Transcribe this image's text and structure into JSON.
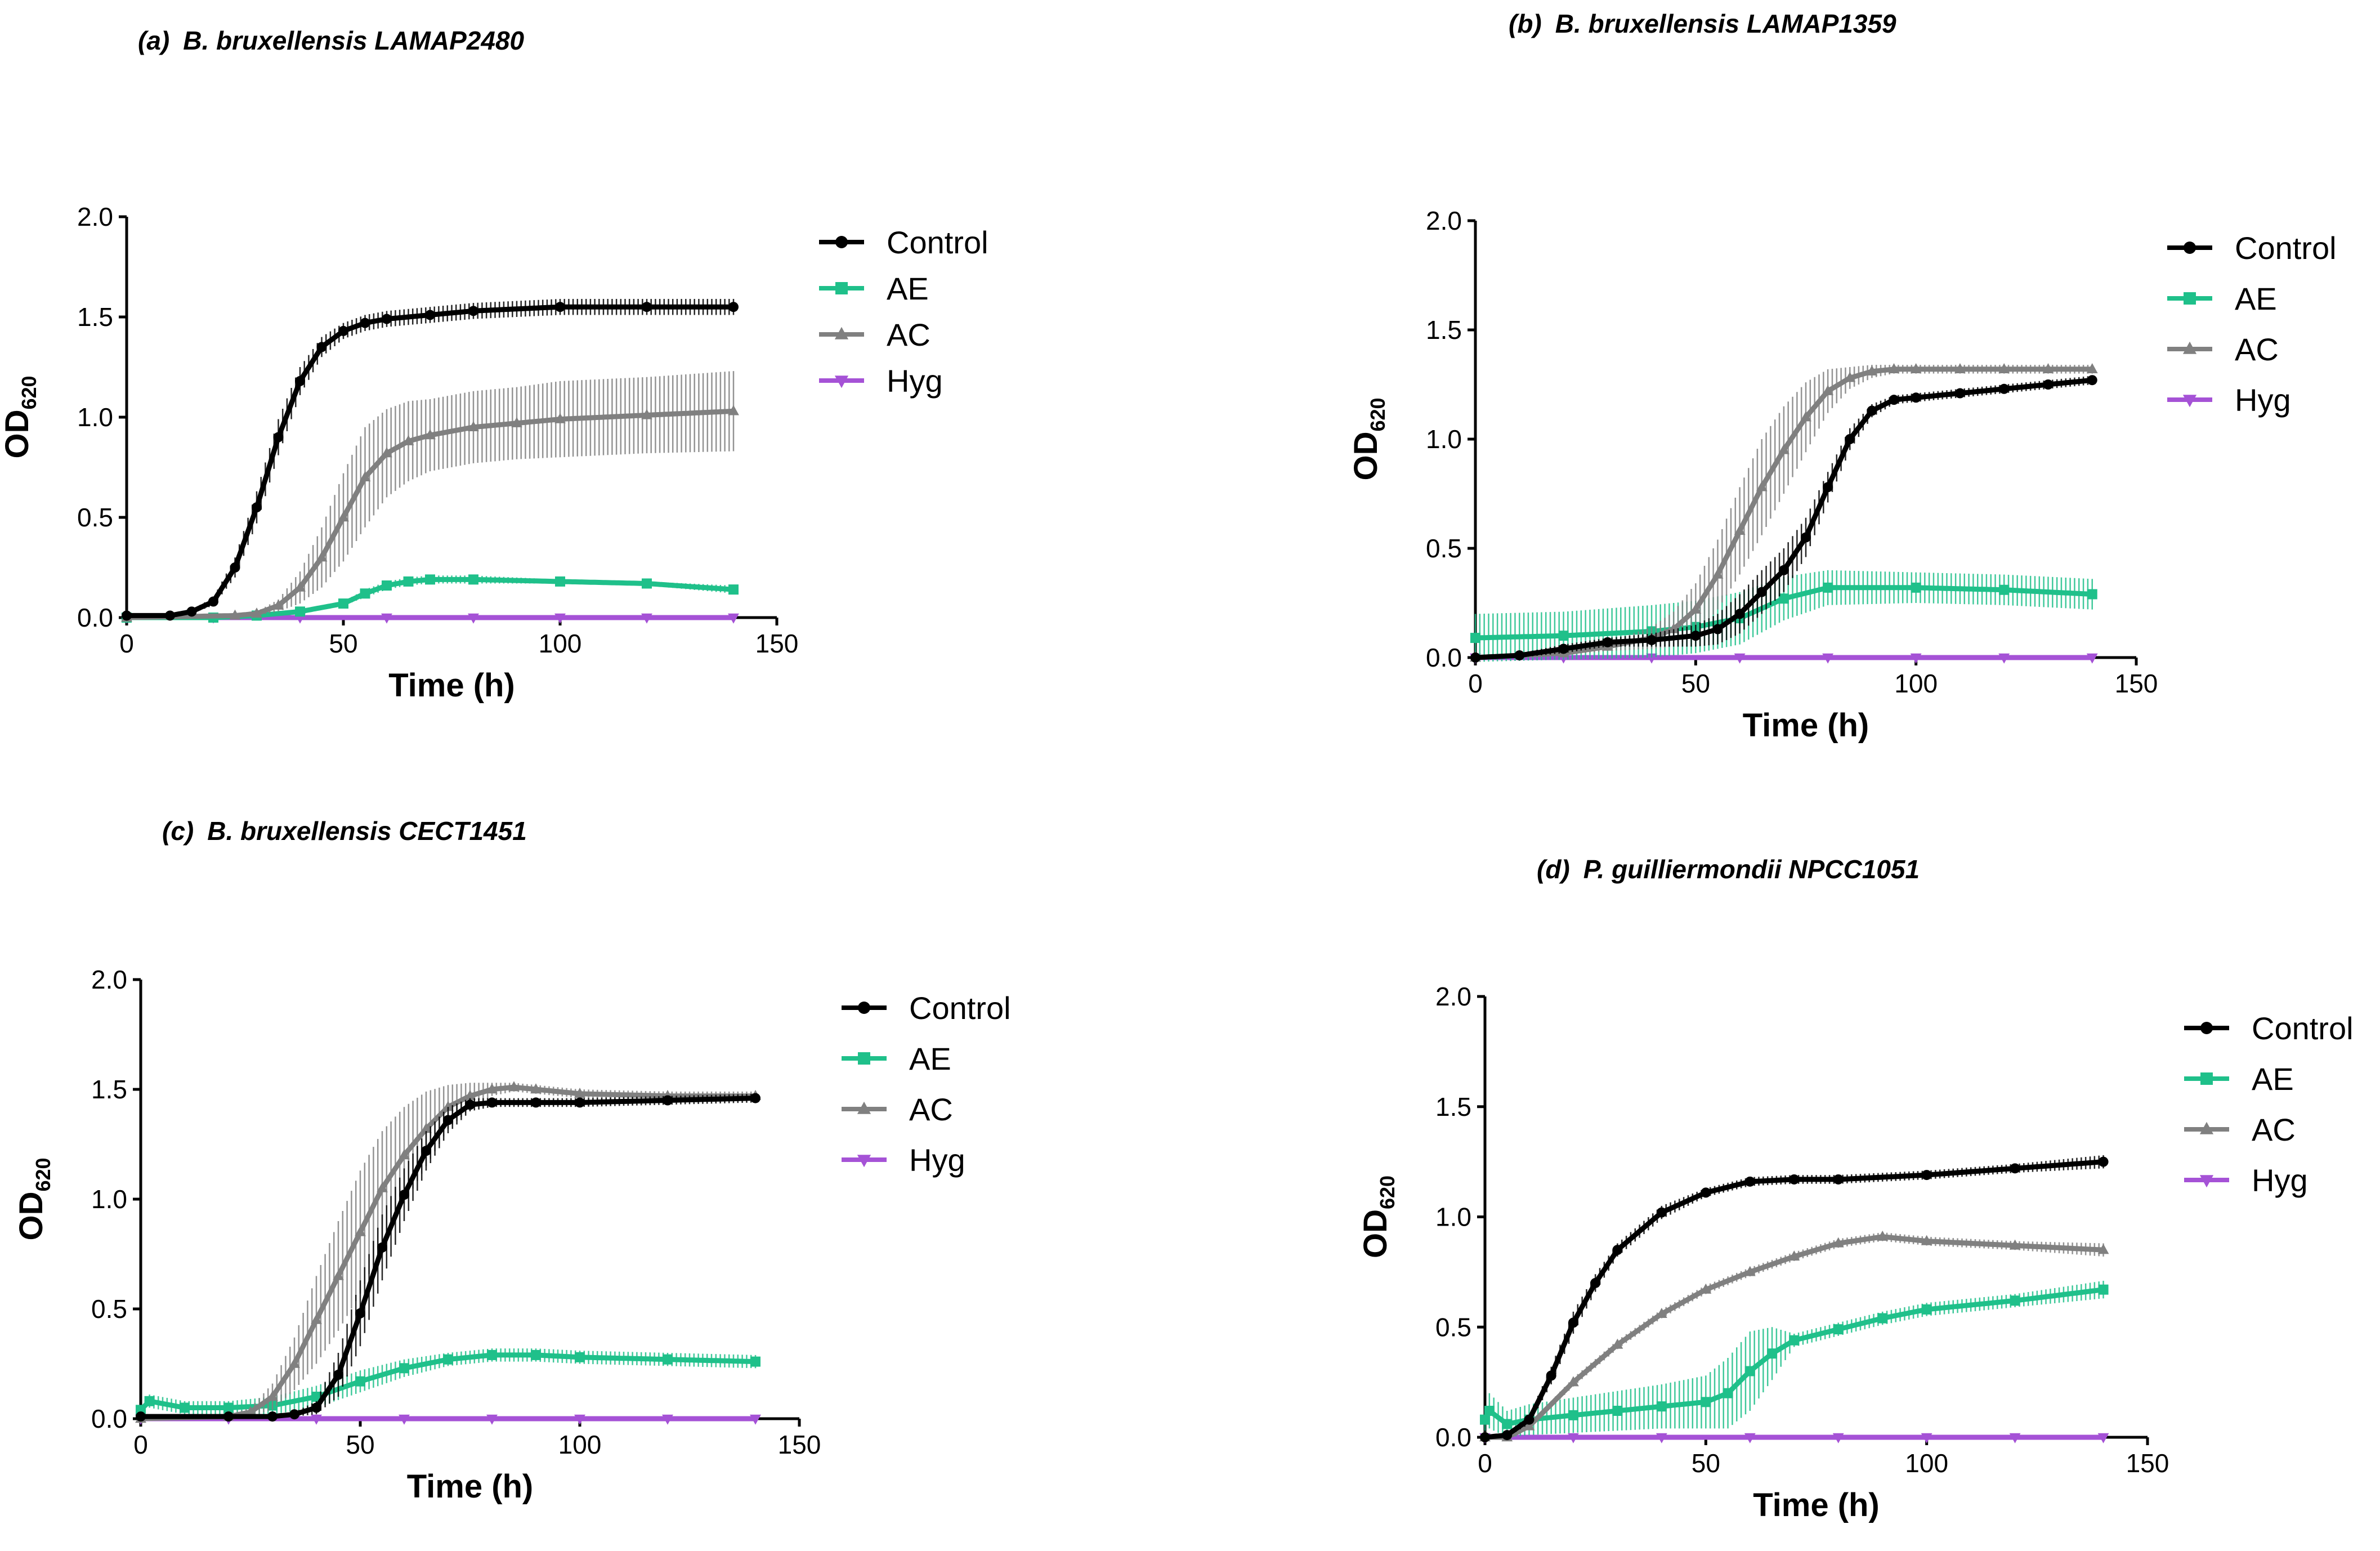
{
  "chart_data": [
    {
      "panel": "(a)",
      "title": "B. bruxellensis LAMAP2480",
      "type": "line",
      "xlabel": "Time (h)",
      "ylabel_main": "OD",
      "ylabel_sub": "620",
      "xlim": [
        0,
        150
      ],
      "ylim": [
        0,
        2.0
      ],
      "xticks": [
        "0",
        "50",
        "100",
        "150"
      ],
      "yticks": [
        "0.0",
        "0.5",
        "1.0",
        "1.5",
        "2.0"
      ],
      "series": [
        {
          "name": "Control",
          "color": "#000000",
          "marker": "circle",
          "x": [
            0,
            10,
            15,
            20,
            25,
            30,
            35,
            40,
            45,
            50,
            55,
            60,
            70,
            80,
            100,
            120,
            140
          ],
          "y": [
            0.01,
            0.01,
            0.03,
            0.08,
            0.25,
            0.55,
            0.9,
            1.18,
            1.35,
            1.43,
            1.47,
            1.49,
            1.51,
            1.53,
            1.55,
            1.55,
            1.55
          ],
          "err": [
            0,
            0,
            0.01,
            0.02,
            0.05,
            0.08,
            0.09,
            0.07,
            0.05,
            0.04,
            0.04,
            0.04,
            0.04,
            0.04,
            0.04,
            0.04,
            0.04
          ]
        },
        {
          "name": "AE",
          "color": "#1fc08a",
          "marker": "square",
          "x": [
            0,
            20,
            30,
            40,
            50,
            55,
            60,
            65,
            70,
            80,
            100,
            120,
            140
          ],
          "y": [
            0.0,
            0.0,
            0.01,
            0.03,
            0.07,
            0.12,
            0.16,
            0.18,
            0.19,
            0.19,
            0.18,
            0.17,
            0.14
          ],
          "err": [
            0,
            0,
            0,
            0.01,
            0.01,
            0.02,
            0.02,
            0.02,
            0.02,
            0.02,
            0.01,
            0.01,
            0.02
          ]
        },
        {
          "name": "AC",
          "color": "#808080",
          "marker": "triangle-up",
          "x": [
            0,
            25,
            30,
            35,
            40,
            45,
            50,
            55,
            60,
            65,
            70,
            80,
            90,
            100,
            120,
            140
          ],
          "y": [
            0.0,
            0.01,
            0.02,
            0.06,
            0.15,
            0.3,
            0.5,
            0.7,
            0.82,
            0.88,
            0.91,
            0.95,
            0.97,
            0.99,
            1.01,
            1.03
          ],
          "err": [
            0,
            0,
            0.01,
            0.03,
            0.08,
            0.15,
            0.22,
            0.25,
            0.22,
            0.2,
            0.18,
            0.18,
            0.18,
            0.19,
            0.19,
            0.2
          ]
        },
        {
          "name": "Hyg",
          "color": "#a552d6",
          "marker": "triangle-down",
          "x": [
            0,
            20,
            40,
            60,
            80,
            100,
            120,
            140
          ],
          "y": [
            0.0,
            0.0,
            0.0,
            0.0,
            0.0,
            0.0,
            0.0,
            0.0
          ],
          "err": [
            0,
            0,
            0,
            0,
            0,
            0,
            0,
            0
          ]
        }
      ]
    },
    {
      "panel": "(b)",
      "title": "B. bruxellensis LAMAP1359",
      "type": "line",
      "xlabel": "Time (h)",
      "ylabel_main": "OD",
      "ylabel_sub": "620",
      "xlim": [
        0,
        150
      ],
      "ylim": [
        0,
        2.0
      ],
      "xticks": [
        "0",
        "50",
        "100",
        "150"
      ],
      "yticks": [
        "0.0",
        "0.5",
        "1.0",
        "1.5",
        "2.0"
      ],
      "series": [
        {
          "name": "Control",
          "color": "#000000",
          "marker": "circle",
          "x": [
            0,
            10,
            20,
            30,
            40,
            50,
            55,
            60,
            65,
            70,
            75,
            80,
            85,
            90,
            95,
            100,
            110,
            120,
            130,
            140
          ],
          "y": [
            0.0,
            0.01,
            0.04,
            0.07,
            0.08,
            0.1,
            0.13,
            0.2,
            0.3,
            0.4,
            0.55,
            0.78,
            1.0,
            1.13,
            1.18,
            1.19,
            1.21,
            1.23,
            1.25,
            1.27
          ],
          "err": [
            0,
            0.01,
            0.02,
            0.02,
            0.03,
            0.05,
            0.07,
            0.09,
            0.1,
            0.1,
            0.09,
            0.07,
            0.05,
            0.03,
            0.02,
            0.02,
            0.02,
            0.02,
            0.02,
            0.02
          ]
        },
        {
          "name": "AE",
          "color": "#1fc08a",
          "marker": "square",
          "x": [
            0,
            20,
            40,
            50,
            60,
            70,
            80,
            100,
            120,
            140
          ],
          "y": [
            0.09,
            0.1,
            0.12,
            0.14,
            0.18,
            0.27,
            0.32,
            0.32,
            0.31,
            0.29
          ],
          "err": [
            0.11,
            0.11,
            0.12,
            0.12,
            0.12,
            0.1,
            0.08,
            0.07,
            0.07,
            0.07
          ]
        },
        {
          "name": "AC",
          "color": "#808080",
          "marker": "triangle-up",
          "x": [
            0,
            20,
            30,
            40,
            45,
            50,
            55,
            60,
            65,
            70,
            75,
            80,
            85,
            90,
            95,
            100,
            110,
            120,
            130,
            140
          ],
          "y": [
            0.0,
            0.02,
            0.05,
            0.09,
            0.13,
            0.22,
            0.38,
            0.58,
            0.78,
            0.95,
            1.1,
            1.22,
            1.28,
            1.31,
            1.32,
            1.32,
            1.32,
            1.32,
            1.32,
            1.32
          ],
          "err": [
            0,
            0.01,
            0.02,
            0.05,
            0.08,
            0.12,
            0.16,
            0.2,
            0.22,
            0.2,
            0.16,
            0.1,
            0.05,
            0.03,
            0.02,
            0.02,
            0.02,
            0.02,
            0.02,
            0.02
          ]
        },
        {
          "name": "Hyg",
          "color": "#a552d6",
          "marker": "triangle-down",
          "x": [
            0,
            20,
            40,
            60,
            80,
            100,
            120,
            140
          ],
          "y": [
            0.0,
            0.0,
            0.0,
            0.0,
            0.0,
            0.0,
            0.0,
            0.0
          ],
          "err": [
            0,
            0,
            0,
            0,
            0,
            0,
            0,
            0
          ]
        }
      ]
    },
    {
      "panel": "(c)",
      "title": "B. bruxellensis CECT1451",
      "type": "line",
      "xlabel": "Time (h)",
      "ylabel_main": "OD",
      "ylabel_sub": "620",
      "xlim": [
        0,
        150
      ],
      "ylim": [
        0,
        2.0
      ],
      "xticks": [
        "0",
        "50",
        "100",
        "150"
      ],
      "yticks": [
        "0.0",
        "0.5",
        "1.0",
        "1.5",
        "2.0"
      ],
      "series": [
        {
          "name": "Control",
          "color": "#000000",
          "marker": "circle",
          "x": [
            0,
            20,
            30,
            35,
            40,
            45,
            50,
            55,
            60,
            65,
            70,
            75,
            80,
            90,
            100,
            120,
            140
          ],
          "y": [
            0.01,
            0.01,
            0.01,
            0.02,
            0.05,
            0.2,
            0.48,
            0.78,
            1.02,
            1.22,
            1.36,
            1.43,
            1.44,
            1.44,
            1.44,
            1.45,
            1.46
          ],
          "err": [
            0,
            0,
            0,
            0.01,
            0.03,
            0.1,
            0.15,
            0.15,
            0.12,
            0.09,
            0.06,
            0.03,
            0.02,
            0.02,
            0.02,
            0.02,
            0.02
          ]
        },
        {
          "name": "AE",
          "color": "#1fc08a",
          "marker": "square",
          "x": [
            0,
            2,
            10,
            20,
            30,
            40,
            50,
            60,
            70,
            80,
            90,
            100,
            120,
            140
          ],
          "y": [
            0.04,
            0.08,
            0.05,
            0.05,
            0.06,
            0.1,
            0.17,
            0.23,
            0.27,
            0.29,
            0.29,
            0.28,
            0.27,
            0.26
          ],
          "err": [
            0.02,
            0.03,
            0.03,
            0.03,
            0.04,
            0.05,
            0.05,
            0.04,
            0.03,
            0.03,
            0.03,
            0.03,
            0.03,
            0.03
          ]
        },
        {
          "name": "AC",
          "color": "#808080",
          "marker": "triangle-up",
          "x": [
            0,
            20,
            25,
            30,
            35,
            40,
            45,
            50,
            55,
            60,
            65,
            70,
            75,
            80,
            85,
            90,
            100,
            120,
            140
          ],
          "y": [
            0.0,
            0.01,
            0.03,
            0.1,
            0.25,
            0.45,
            0.65,
            0.85,
            1.05,
            1.2,
            1.32,
            1.42,
            1.47,
            1.5,
            1.51,
            1.5,
            1.48,
            1.47,
            1.47
          ],
          "err": [
            0,
            0.01,
            0.02,
            0.06,
            0.12,
            0.2,
            0.25,
            0.28,
            0.26,
            0.22,
            0.17,
            0.1,
            0.06,
            0.03,
            0.02,
            0.02,
            0.02,
            0.02,
            0.02
          ]
        },
        {
          "name": "Hyg",
          "color": "#a552d6",
          "marker": "triangle-down",
          "x": [
            0,
            20,
            40,
            60,
            80,
            100,
            120,
            140
          ],
          "y": [
            0.0,
            0.0,
            0.0,
            0.0,
            0.0,
            0.0,
            0.0,
            0.0
          ],
          "err": [
            0,
            0,
            0,
            0,
            0,
            0,
            0,
            0
          ]
        }
      ]
    },
    {
      "panel": "(d)",
      "title": "P. guilliermondii NPCC1051",
      "type": "line",
      "xlabel": "Time (h)",
      "ylabel_main": "OD",
      "ylabel_sub": "620",
      "xlim": [
        0,
        150
      ],
      "ylim": [
        0,
        2.0
      ],
      "xticks": [
        "0",
        "50",
        "100",
        "150"
      ],
      "yticks": [
        "0.0",
        "0.5",
        "1.0",
        "1.5",
        "2.0"
      ],
      "series": [
        {
          "name": "Control",
          "color": "#000000",
          "marker": "circle",
          "x": [
            0,
            5,
            10,
            15,
            20,
            25,
            30,
            40,
            50,
            60,
            70,
            80,
            100,
            120,
            140
          ],
          "y": [
            0.0,
            0.01,
            0.08,
            0.28,
            0.52,
            0.7,
            0.85,
            1.02,
            1.11,
            1.16,
            1.17,
            1.17,
            1.19,
            1.22,
            1.25
          ],
          "err": [
            0,
            0.01,
            0.02,
            0.04,
            0.05,
            0.04,
            0.03,
            0.03,
            0.02,
            0.02,
            0.02,
            0.02,
            0.02,
            0.02,
            0.03
          ]
        },
        {
          "name": "AE",
          "color": "#1fc08a",
          "marker": "square",
          "x": [
            0,
            1,
            5,
            10,
            20,
            30,
            40,
            50,
            55,
            60,
            65,
            70,
            80,
            90,
            100,
            120,
            140
          ],
          "y": [
            0.08,
            0.12,
            0.06,
            0.08,
            0.1,
            0.12,
            0.14,
            0.16,
            0.2,
            0.3,
            0.38,
            0.44,
            0.49,
            0.54,
            0.58,
            0.62,
            0.67
          ],
          "err": [
            0.05,
            0.08,
            0.06,
            0.07,
            0.08,
            0.09,
            0.1,
            0.12,
            0.16,
            0.18,
            0.12,
            0.03,
            0.03,
            0.03,
            0.03,
            0.03,
            0.04
          ]
        },
        {
          "name": "AC",
          "color": "#808080",
          "marker": "triangle-up",
          "x": [
            0,
            5,
            10,
            20,
            30,
            40,
            50,
            60,
            70,
            80,
            90,
            100,
            120,
            140
          ],
          "y": [
            0.0,
            0.0,
            0.05,
            0.25,
            0.42,
            0.56,
            0.67,
            0.75,
            0.82,
            0.88,
            0.91,
            0.89,
            0.87,
            0.85
          ],
          "err": [
            0,
            0,
            0.01,
            0.02,
            0.02,
            0.02,
            0.02,
            0.02,
            0.02,
            0.02,
            0.02,
            0.02,
            0.02,
            0.03
          ]
        },
        {
          "name": "Hyg",
          "color": "#a552d6",
          "marker": "triangle-down",
          "x": [
            0,
            20,
            40,
            60,
            80,
            100,
            120,
            140
          ],
          "y": [
            0.0,
            0.0,
            0.0,
            0.0,
            0.0,
            0.0,
            0.0,
            0.0
          ],
          "err": [
            0,
            0,
            0,
            0,
            0,
            0,
            0,
            0
          ]
        }
      ]
    }
  ]
}
